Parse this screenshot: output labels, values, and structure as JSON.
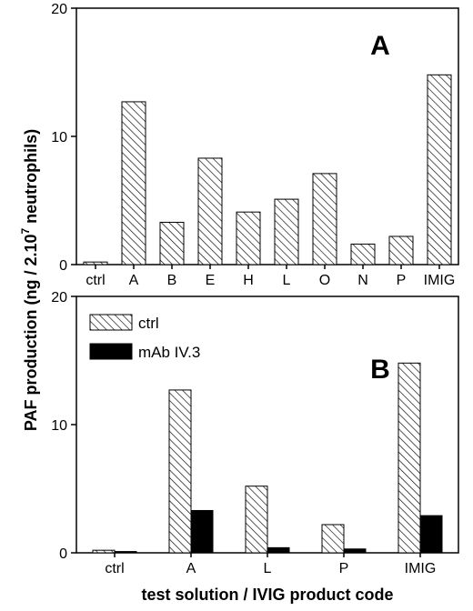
{
  "chart_data": [
    {
      "type": "bar",
      "panel_label": "A",
      "categories": [
        "ctrl",
        "A",
        "B",
        "E",
        "H",
        "L",
        "O",
        "N",
        "P",
        "IMIG"
      ],
      "series": [
        {
          "values": [
            0.2,
            12.7,
            3.3,
            8.3,
            4.1,
            5.1,
            7.1,
            1.6,
            2.2,
            14.8
          ]
        }
      ],
      "yticks": [
        "0",
        "10",
        "20"
      ],
      "ylim": [
        0,
        20
      ]
    },
    {
      "type": "bar",
      "panel_label": "B",
      "categories": [
        "ctrl",
        "A",
        "L",
        "P",
        "IMIG"
      ],
      "series": [
        {
          "name": "ctrl",
          "values": [
            0.2,
            12.7,
            5.2,
            2.2,
            14.8
          ]
        },
        {
          "name": "mAb IV.3",
          "values": [
            0.1,
            3.3,
            0.4,
            0.3,
            2.9
          ]
        }
      ],
      "yticks": [
        "0",
        "10",
        "20"
      ],
      "ylim": [
        0,
        20
      ],
      "legend_position": "top-left"
    }
  ],
  "ylabel": "PAF production (ng / 2.10",
  "ylabel_sup": "7",
  "ylabel_tail": " neutrophils)",
  "xlabel": "test solution / IVIG product code"
}
